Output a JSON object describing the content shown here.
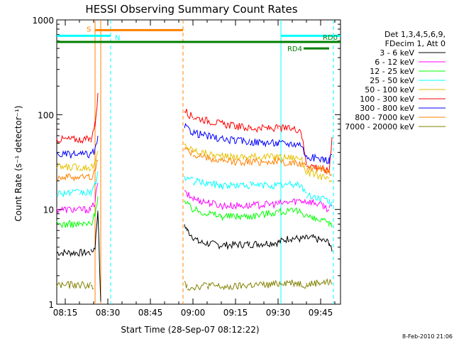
{
  "colors": {
    "bg": "#ffffff",
    "axis": "#000000",
    "cyan": "#00ffff",
    "orange": "#ff8000",
    "green": "#007f00"
  },
  "chart_data": {
    "type": "line",
    "title": "HESSI Observing Summary Count Rates",
    "xlabel": "Start Time (28-Sep-07 08:12:22)",
    "ylabel": "Count Rate (s⁻¹ detector⁻¹)",
    "x_unit": "minutes after 08:12:22",
    "xlim": [
      "08:12",
      "09:52"
    ],
    "ylim": [
      1,
      1000
    ],
    "yscale": "log",
    "x_tick_labels": [
      "08:15",
      "08:30",
      "08:45",
      "09:00",
      "09:15",
      "09:30",
      "09:45"
    ],
    "y_tick_labels": [
      "1",
      "10",
      "100",
      "1000"
    ],
    "legend": {
      "placement": "right",
      "header": [
        "Det 1,3,4,5,6,9,",
        "FDecim 1, Att 0"
      ]
    },
    "series": [
      {
        "name": "3 - 6 keV",
        "color": "#000000",
        "x": [
          "08:12",
          "08:24",
          "08:25.5",
          "08:26.5",
          "08:27.5",
          "08:56.5",
          "08:57",
          "08:58",
          "09:02",
          "09:10",
          "09:20",
          "09:30",
          "09:34",
          "09:38",
          "09:42",
          "09:48",
          "09:49"
        ],
        "y": [
          3.5,
          3.5,
          4,
          10,
          1.0,
          null,
          7,
          6,
          4.5,
          4.2,
          4.3,
          4.5,
          5,
          4.9,
          5,
          4.5,
          3.5
        ]
      },
      {
        "name": "6 - 12 keV",
        "color": "#ff00ff",
        "x": [
          "08:12",
          "08:20",
          "08:24",
          "08:25.5",
          "08:26.5",
          "08:56.5",
          "08:57",
          "09:00",
          "09:10",
          "09:20",
          "09:30",
          "09:38",
          "09:42",
          "09:46",
          "09:48",
          "09:49"
        ],
        "y": [
          10,
          10,
          10,
          12,
          20,
          null,
          15,
          13,
          11,
          11,
          11.5,
          12.5,
          12,
          11,
          10,
          11
        ]
      },
      {
        "name": "12 - 25 keV",
        "color": "#00ff00",
        "x": [
          "08:12",
          "08:20",
          "08:24",
          "08:25.5",
          "08:26.5",
          "08:56.5",
          "08:57",
          "09:00",
          "09:10",
          "09:20",
          "09:30",
          "09:38",
          "09:42",
          "09:46",
          "09:48",
          "09:49"
        ],
        "y": [
          7,
          7,
          7,
          9,
          14,
          null,
          12,
          10,
          8.5,
          8.5,
          9.5,
          9.5,
          8,
          7.5,
          7,
          7
        ]
      },
      {
        "name": "25 - 50 keV",
        "color": "#00ffff",
        "x": [
          "08:12",
          "08:20",
          "08:24",
          "08:25.5",
          "08:26.5",
          "08:56.5",
          "08:57",
          "09:00",
          "09:10",
          "09:20",
          "09:30",
          "09:38",
          "09:40",
          "09:46",
          "09:48",
          "09:49"
        ],
        "y": [
          15,
          15,
          15,
          18,
          25,
          null,
          22,
          20,
          18,
          18,
          18,
          18.5,
          14,
          13,
          12,
          12
        ]
      },
      {
        "name": "50 - 100 keV",
        "color": "#e6c000",
        "x": [
          "08:12",
          "08:20",
          "08:24",
          "08:25.5",
          "08:26.5",
          "08:56.5",
          "08:57",
          "09:00",
          "09:10",
          "09:20",
          "09:30",
          "09:38",
          "09:40",
          "09:46",
          "09:48",
          "09:49"
        ],
        "y": [
          28,
          28,
          28,
          30,
          40,
          null,
          48,
          42,
          36,
          36,
          36,
          35,
          25,
          22,
          20,
          20
        ]
      },
      {
        "name": "100 - 300 keV",
        "color": "#ff0000",
        "x": [
          "08:12",
          "08:20",
          "08:24",
          "08:25.5",
          "08:26.5",
          "08:56.5",
          "08:57",
          "09:00",
          "09:10",
          "09:20",
          "09:30",
          "09:38",
          "09:40",
          "09:46",
          "09:48",
          "09:49"
        ],
        "y": [
          55,
          55,
          55,
          80,
          160,
          null,
          110,
          95,
          80,
          72,
          72,
          70,
          30,
          27,
          25,
          60
        ]
      },
      {
        "name": "300 - 800 keV",
        "color": "#0000ff",
        "x": [
          "08:12",
          "08:20",
          "08:24",
          "08:25.5",
          "08:26.5",
          "08:56.5",
          "08:57",
          "09:00",
          "09:10",
          "09:20",
          "09:30",
          "09:38",
          "09:40",
          "09:46",
          "09:48",
          "09:49"
        ],
        "y": [
          38,
          38,
          38,
          42,
          55,
          null,
          75,
          65,
          55,
          52,
          50,
          49,
          36,
          34,
          33,
          40
        ]
      },
      {
        "name": "800 - 7000 keV",
        "color": "#ff8000",
        "x": [
          "08:12",
          "08:20",
          "08:24",
          "08:25.5",
          "08:26.5",
          "08:56.5",
          "08:57",
          "09:00",
          "09:10",
          "09:20",
          "09:30",
          "09:38",
          "09:40",
          "09:46",
          "09:48",
          "09:49"
        ],
        "y": [
          22,
          22,
          22,
          25,
          35,
          null,
          45,
          38,
          32,
          32,
          32,
          30,
          28,
          27,
          25,
          25
        ]
      },
      {
        "name": "7000 - 20000 keV",
        "color": "#808000",
        "x": [
          "08:12",
          "08:24",
          "08:25",
          "08:56.5",
          "08:57",
          "08:58",
          "09:05",
          "09:12",
          "09:20",
          "09:28",
          "09:32",
          "09:36",
          "09:40",
          "09:44",
          "09:48",
          "09:49"
        ],
        "y": [
          1.6,
          1.6,
          1.4,
          null,
          1.7,
          1.5,
          1.6,
          1.5,
          1.6,
          1.6,
          1.7,
          1.7,
          1.6,
          1.7,
          1.7,
          1.7
        ]
      }
    ],
    "annotations": [
      {
        "type": "vline",
        "x": "08:25.5",
        "color": "#ff8000",
        "style": "solid"
      },
      {
        "type": "vline",
        "x": "08:27.5",
        "color": "#ff8000",
        "style": "solid"
      },
      {
        "type": "vline",
        "x": "08:56.5",
        "color": "#ff8000",
        "style": "dashed"
      },
      {
        "type": "vline",
        "x": "08:31",
        "color": "#00ffff",
        "style": "dashed"
      },
      {
        "type": "vline",
        "x": "09:31",
        "color": "#00ffff",
        "style": "solid"
      },
      {
        "type": "vline",
        "x": "09:49.5",
        "color": "#00ffff",
        "style": "dashed"
      },
      {
        "type": "hbar",
        "label": "S",
        "x0": "08:25.5",
        "x1": "08:56.5",
        "y": 780,
        "color": "#ff8000"
      },
      {
        "type": "hbar",
        "label": "N",
        "x0": "08:12",
        "x1": "08:31",
        "y": 680,
        "color": "#00ffff"
      },
      {
        "type": "hbar",
        "label": "",
        "x0": "09:31",
        "x1": "09:52",
        "y": 680,
        "color": "#00ffff"
      },
      {
        "type": "hbar",
        "label": "RD0",
        "x0": "08:12",
        "x1": "09:52",
        "y": 585,
        "color": "#007f00"
      },
      {
        "type": "hbar",
        "label": "RD4",
        "x0": "09:39",
        "x1": "09:48",
        "y": 500,
        "color": "#007f00"
      }
    ]
  },
  "footer": {
    "timestamp": "8-Feb-2010 21:06"
  }
}
